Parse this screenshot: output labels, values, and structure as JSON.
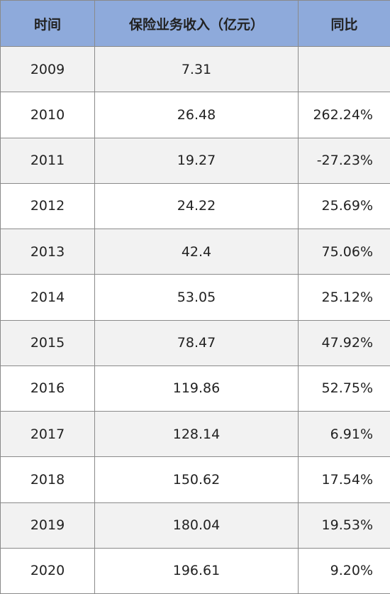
{
  "table": {
    "header": [
      "时间",
      "保险业务收入（亿元）",
      "同比"
    ],
    "rows": [
      [
        "2009",
        "7.31",
        null
      ],
      [
        "2010",
        "26.48",
        "262.24%"
      ],
      [
        "2011",
        "19.27",
        "-27.23%"
      ],
      [
        "2012",
        "24.22",
        "25.69%"
      ],
      [
        "2013",
        "42.4",
        "75.06%"
      ],
      [
        "2014",
        "53.05",
        "25.12%"
      ],
      [
        "2015",
        "78.47",
        "47.92%"
      ],
      [
        "2016",
        "119.86",
        "52.75%"
      ],
      [
        "2017",
        "128.14",
        "6.91%"
      ],
      [
        "2018",
        "150.62",
        "17.54%"
      ],
      [
        "2019",
        "180.04",
        "19.53%"
      ],
      [
        "2020",
        "196.61",
        "9.20%"
      ]
    ]
  }
}
